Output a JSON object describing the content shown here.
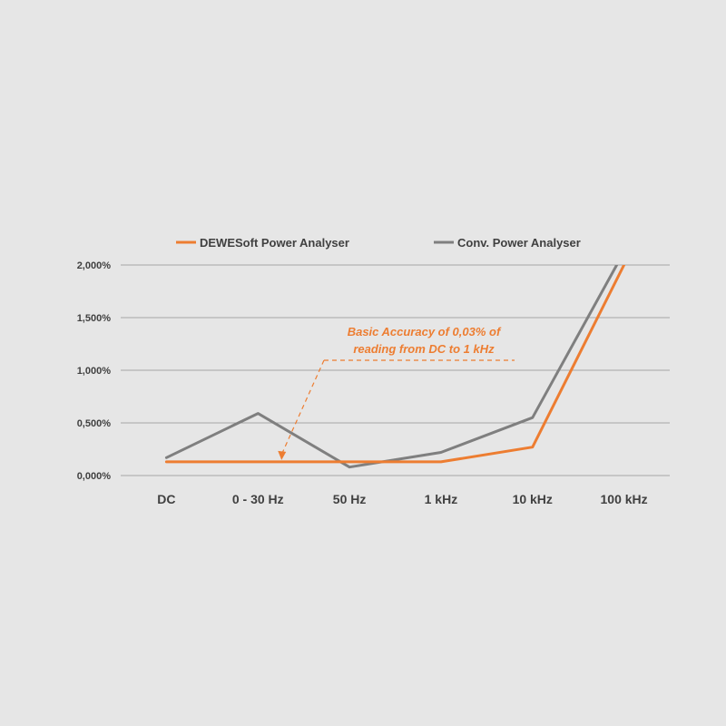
{
  "chart_data": {
    "type": "line",
    "categories": [
      "DC",
      "0 - 30 Hz",
      "50 Hz",
      "1 kHz",
      "10 kHz",
      "100 kHz"
    ],
    "y_ticks": [
      "0,000%",
      "0,500%",
      "1,000%",
      "1,500%",
      "2,000%"
    ],
    "ylim": [
      0,
      2
    ],
    "grid": true,
    "legend_position": "top",
    "series": [
      {
        "name": "DEWESoft Power Analyser",
        "color": "#ed7d31",
        "values": [
          0.13,
          0.13,
          0.13,
          0.13,
          0.27,
          2.0
        ]
      },
      {
        "name": "Conv. Power Analyser",
        "color": "#7f7f7f",
        "values": [
          0.17,
          0.59,
          0.08,
          0.22,
          0.55,
          2.0
        ]
      }
    ],
    "annotation": {
      "lines": [
        "Basic Accuracy of 0,03% of",
        "reading from DC to 1 kHz"
      ],
      "color": "#ed7d31",
      "points_to_category": "0 - 30 Hz",
      "points_to_value": 0.13
    }
  }
}
